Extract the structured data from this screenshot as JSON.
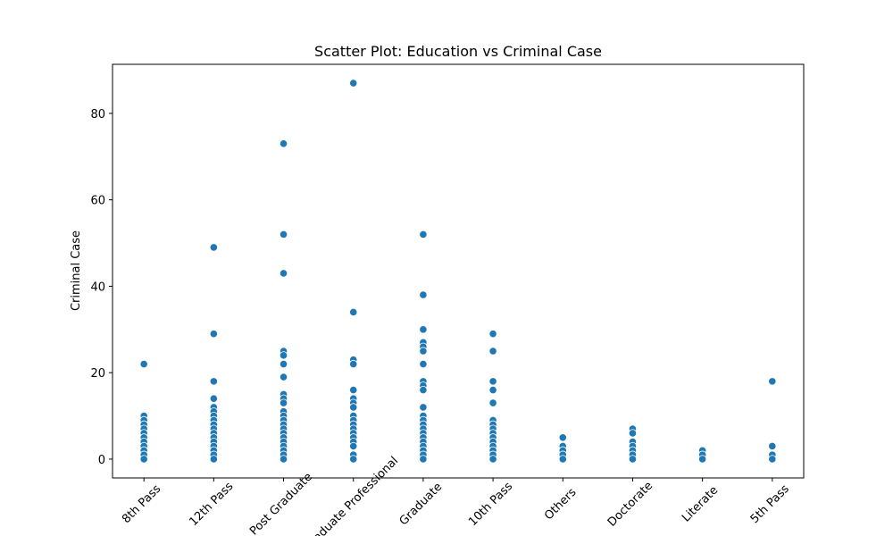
{
  "chart_data": {
    "type": "scatter",
    "title": "Scatter Plot: Education vs Criminal Case",
    "y_label": "Criminal Case",
    "categories": [
      "8th Pass",
      "12th Pass",
      "Post Graduate",
      "Graduate Professional",
      "Graduate",
      "10th Pass",
      "Others",
      "Doctorate",
      "Literate",
      "5th Pass"
    ],
    "series": [
      {
        "color": "#1f77b4",
        "x": [
          "8th Pass",
          "8th Pass",
          "8th Pass",
          "8th Pass",
          "8th Pass",
          "8th Pass",
          "8th Pass",
          "8th Pass",
          "8th Pass",
          "8th Pass",
          "8th Pass",
          "8th Pass",
          "12th Pass",
          "12th Pass",
          "12th Pass",
          "12th Pass",
          "12th Pass",
          "12th Pass",
          "12th Pass",
          "12th Pass",
          "12th Pass",
          "12th Pass",
          "12th Pass",
          "12th Pass",
          "12th Pass",
          "12th Pass",
          "12th Pass",
          "12th Pass",
          "12th Pass",
          "Post Graduate",
          "Post Graduate",
          "Post Graduate",
          "Post Graduate",
          "Post Graduate",
          "Post Graduate",
          "Post Graduate",
          "Post Graduate",
          "Post Graduate",
          "Post Graduate",
          "Post Graduate",
          "Post Graduate",
          "Post Graduate",
          "Post Graduate",
          "Post Graduate",
          "Post Graduate",
          "Post Graduate",
          "Post Graduate",
          "Post Graduate",
          "Post Graduate",
          "Post Graduate",
          "Post Graduate",
          "Graduate Professional",
          "Graduate Professional",
          "Graduate Professional",
          "Graduate Professional",
          "Graduate Professional",
          "Graduate Professional",
          "Graduate Professional",
          "Graduate Professional",
          "Graduate Professional",
          "Graduate Professional",
          "Graduate Professional",
          "Graduate Professional",
          "Graduate Professional",
          "Graduate Professional",
          "Graduate Professional",
          "Graduate Professional",
          "Graduate Professional",
          "Graduate Professional",
          "Graduate",
          "Graduate",
          "Graduate",
          "Graduate",
          "Graduate",
          "Graduate",
          "Graduate",
          "Graduate",
          "Graduate",
          "Graduate",
          "Graduate",
          "Graduate",
          "Graduate",
          "Graduate",
          "Graduate",
          "Graduate",
          "Graduate",
          "Graduate",
          "Graduate",
          "Graduate",
          "Graduate",
          "Graduate",
          "10th Pass",
          "10th Pass",
          "10th Pass",
          "10th Pass",
          "10th Pass",
          "10th Pass",
          "10th Pass",
          "10th Pass",
          "10th Pass",
          "10th Pass",
          "10th Pass",
          "10th Pass",
          "10th Pass",
          "10th Pass",
          "10th Pass",
          "Others",
          "Others",
          "Others",
          "Others",
          "Others",
          "Doctorate",
          "Doctorate",
          "Doctorate",
          "Doctorate",
          "Doctorate",
          "Doctorate",
          "Doctorate",
          "Literate",
          "Literate",
          "Literate",
          "5th Pass",
          "5th Pass",
          "5th Pass",
          "5th Pass"
        ],
        "values": [
          22,
          10,
          9,
          8,
          7,
          6,
          5,
          4,
          3,
          2,
          1,
          0,
          49,
          29,
          18,
          14,
          12,
          11,
          10,
          9,
          8,
          7,
          6,
          5,
          4,
          3,
          2,
          1,
          0,
          73,
          52,
          43,
          25,
          24,
          22,
          19,
          15,
          14,
          13,
          11,
          10,
          9,
          8,
          7,
          6,
          5,
          4,
          3,
          2,
          1,
          0,
          87,
          34,
          23,
          22,
          16,
          14,
          13,
          12,
          10,
          9,
          8,
          7,
          6,
          5,
          4,
          3,
          1,
          0,
          52,
          38,
          30,
          27,
          26,
          25,
          22,
          18,
          17,
          16,
          12,
          10,
          9,
          8,
          7,
          6,
          5,
          4,
          3,
          2,
          1,
          0,
          29,
          25,
          18,
          16,
          13,
          9,
          8,
          7,
          6,
          5,
          4,
          3,
          2,
          1,
          0,
          5,
          3,
          2,
          1,
          0,
          7,
          6,
          4,
          3,
          2,
          1,
          0,
          2,
          1,
          0,
          18,
          3,
          1,
          0
        ]
      }
    ],
    "ylim": [
      -4.35,
      91.35
    ],
    "yticks": [
      0,
      20,
      40,
      60,
      80
    ],
    "grid": false
  }
}
